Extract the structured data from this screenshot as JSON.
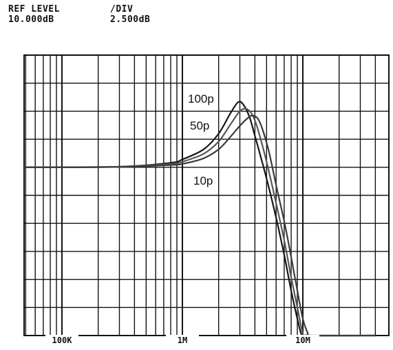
{
  "header": {
    "ref_level_label": "REF LEVEL",
    "ref_level_value": "10.000dB",
    "div_label": "/DIV",
    "div_value": "2.500dB"
  },
  "chart_data": {
    "type": "line",
    "title": "",
    "xlabel": "",
    "ylabel": "",
    "x_scale": "log",
    "x_unit": "Hz",
    "xlim": [
      30000,
      40000000
    ],
    "x_ticks": [
      {
        "value": 100000,
        "label": "100K"
      },
      {
        "value": 1000000,
        "label": "1M"
      },
      {
        "value": 10000000,
        "label": "10M"
      }
    ],
    "y_unit": "dB",
    "ref_level_db": 10.0,
    "db_per_div": 2.5,
    "ylim": [
      -15,
      10
    ],
    "grid": true,
    "series": [
      {
        "name": "100p",
        "x": [
          30000,
          300000,
          800000,
          1000000,
          1500000,
          2000000,
          2500000,
          2900000,
          3200000,
          3600000,
          4000000,
          5000000,
          6000000,
          7000000,
          8000000,
          9000000,
          9800000,
          10500000,
          40000000
        ],
        "y": [
          0,
          0.05,
          0.4,
          0.7,
          1.6,
          3.0,
          4.8,
          5.8,
          5.6,
          4.5,
          2.8,
          -1.0,
          -4.5,
          -7.8,
          -11.0,
          -13.5,
          -15,
          -15,
          -15
        ]
      },
      {
        "name": "50p",
        "x": [
          30000,
          300000,
          800000,
          1000000,
          1500000,
          2000000,
          2500000,
          3000000,
          3400000,
          3800000,
          4200000,
          5000000,
          6000000,
          7000000,
          8000000,
          9000000,
          10000000,
          10800000,
          40000000
        ],
        "y": [
          0,
          0.05,
          0.3,
          0.5,
          1.2,
          2.3,
          3.8,
          5.0,
          5.2,
          4.7,
          3.5,
          0.5,
          -3.2,
          -6.5,
          -9.8,
          -12.5,
          -14.8,
          -15,
          -15
        ]
      },
      {
        "name": "10p",
        "x": [
          30000,
          300000,
          800000,
          1000000,
          1500000,
          2000000,
          2500000,
          3000000,
          3500000,
          3900000,
          4400000,
          5200000,
          6000000,
          7000000,
          8000000,
          9000000,
          10000000,
          11000000,
          11600000,
          40000000
        ],
        "y": [
          0,
          0.03,
          0.2,
          0.3,
          0.8,
          1.6,
          2.7,
          3.7,
          4.4,
          4.6,
          4.0,
          1.5,
          -1.6,
          -4.8,
          -8.0,
          -11.0,
          -13.5,
          -14.8,
          -15,
          -15
        ]
      }
    ],
    "annotations": [
      {
        "text": "100p",
        "target": "100p"
      },
      {
        "text": "50p",
        "target": "50p"
      },
      {
        "text": "10p",
        "target": "10p"
      }
    ]
  }
}
